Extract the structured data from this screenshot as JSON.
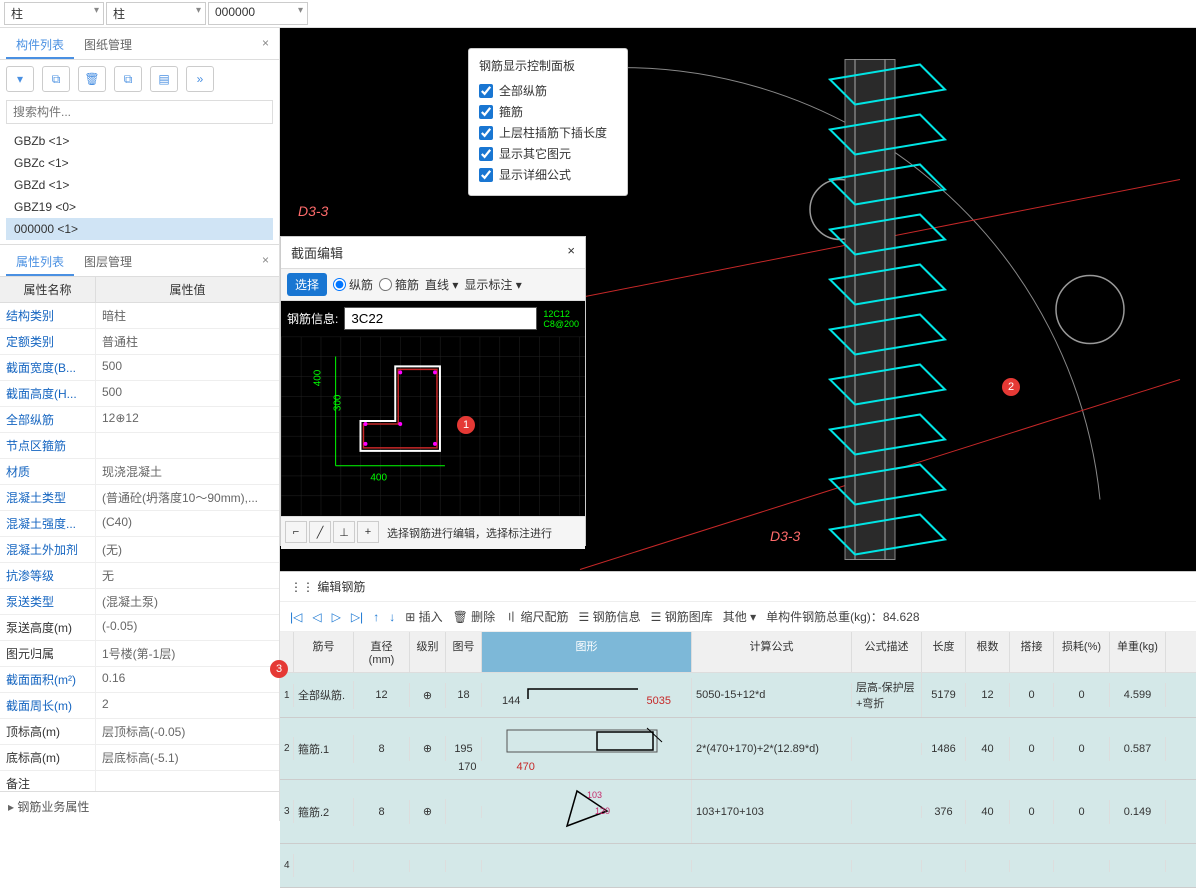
{
  "dropdowns": {
    "d1": "柱",
    "d2": "柱",
    "d3": "000000"
  },
  "left_tabs": {
    "t1": "构件列表",
    "t2": "图纸管理"
  },
  "search_placeholder": "搜索构件...",
  "components": [
    {
      "name": "GBZb <1>"
    },
    {
      "name": "GBZc <1>"
    },
    {
      "name": "GBZd <1>"
    },
    {
      "name": "GBZ19 <0>"
    },
    {
      "name": "000000 <1>",
      "sel": true
    }
  ],
  "prop_tabs": {
    "t1": "属性列表",
    "t2": "图层管理"
  },
  "prop_head": {
    "name": "属性名称",
    "val": "属性值"
  },
  "props": [
    {
      "n": "结构类别",
      "v": "暗柱"
    },
    {
      "n": "定额类别",
      "v": "普通柱"
    },
    {
      "n": "截面宽度(B...",
      "v": "500"
    },
    {
      "n": "截面高度(H...",
      "v": "500"
    },
    {
      "n": "全部纵筋",
      "v": "12⊕12"
    },
    {
      "n": "节点区箍筋",
      "v": ""
    },
    {
      "n": "材质",
      "v": "现浇混凝土"
    },
    {
      "n": "混凝土类型",
      "v": "(普通砼(坍落度10～90mm),..."
    },
    {
      "n": "混凝土强度...",
      "v": "(C40)"
    },
    {
      "n": "混凝土外加剂",
      "v": "(无)"
    },
    {
      "n": "抗渗等级",
      "v": "无"
    },
    {
      "n": "泵送类型",
      "v": "(混凝土泵)"
    },
    {
      "n": "泵送高度(m)",
      "v": "(-0.05)",
      "black": true
    },
    {
      "n": "图元归属",
      "v": "1号楼(第-1层)",
      "black": true
    },
    {
      "n": "截面面积(m²)",
      "v": "0.16"
    },
    {
      "n": "截面周长(m)",
      "v": "2"
    },
    {
      "n": "顶标高(m)",
      "v": "层顶标高(-0.05)",
      "black": true
    },
    {
      "n": "底标高(m)",
      "v": "层底标高(-5.1)",
      "black": true
    },
    {
      "n": "备注",
      "v": "",
      "black": true
    }
  ],
  "prop_footer": "钢筋业务属性",
  "rebar_panel": {
    "title": "钢筋显示控制面板",
    "opts": [
      "全部纵筋",
      "箍筋",
      "上层柱插筋下插长度",
      "显示其它图元",
      "显示详细公式"
    ]
  },
  "section_editor": {
    "title": "截面编辑",
    "select": "选择",
    "r1": "纵筋",
    "r2": "箍筋",
    "line": "直线",
    "label": "显示标注",
    "info_label": "钢筋信息:",
    "info_value": "3C22",
    "dims": {
      "l300": "300",
      "l400": "400"
    },
    "hint": "选择钢筋进行编辑，选择标注进行"
  },
  "axis_labels": {
    "top": "D3-3",
    "bottom": "D3-3"
  },
  "bottom": {
    "title": "编辑钢筋",
    "tb": {
      "insert": "插入",
      "delete": "删除",
      "scale": "缩尺配筋",
      "info": "钢筋信息",
      "lib": "钢筋图库",
      "other": "其他",
      "total_label": "单构件钢筋总重(kg)：",
      "total": "84.628"
    },
    "head": {
      "num": "筋号",
      "dia": "直径(mm)",
      "lvl": "级别",
      "tn": "图号",
      "shape": "图形",
      "formula": "计算公式",
      "desc": "公式描述",
      "len": "长度",
      "cnt": "根数",
      "lap": "搭接",
      "loss": "损耗(%)",
      "wt": "单重(kg)"
    },
    "rows": [
      {
        "i": "1",
        "num": "全部纵筋.",
        "dia": "12",
        "lvl": "⊕",
        "tn": "18",
        "shape_a": "144",
        "shape_b": "5035",
        "formula": "5050-15+12*d",
        "desc": "层高-保护层+弯折",
        "len": "5179",
        "cnt": "12",
        "lap": "0",
        "loss": "0",
        "wt": "4.599"
      },
      {
        "i": "2",
        "num": "箍筋.1",
        "dia": "8",
        "lvl": "⊕",
        "tn": "195",
        "shape_a": "170",
        "shape_b": "470",
        "formula": "2*(470+170)+2*(12.89*d)",
        "desc": "",
        "len": "1486",
        "cnt": "40",
        "lap": "0",
        "loss": "0",
        "wt": "0.587"
      },
      {
        "i": "3",
        "num": "箍筋.2",
        "dia": "8",
        "lvl": "⊕",
        "tn": "",
        "shape_a": "103",
        "shape_b": "120",
        "formula": "103+170+103",
        "desc": "",
        "len": "376",
        "cnt": "40",
        "lap": "0",
        "loss": "0",
        "wt": "0.149"
      },
      {
        "i": "4",
        "num": "",
        "dia": "",
        "lvl": "",
        "tn": "",
        "shape_a": "",
        "shape_b": "",
        "formula": "",
        "desc": "",
        "len": "",
        "cnt": "",
        "lap": "",
        "loss": "",
        "wt": ""
      }
    ]
  },
  "markers": {
    "m1": "1",
    "m2": "2",
    "m3": "3"
  }
}
